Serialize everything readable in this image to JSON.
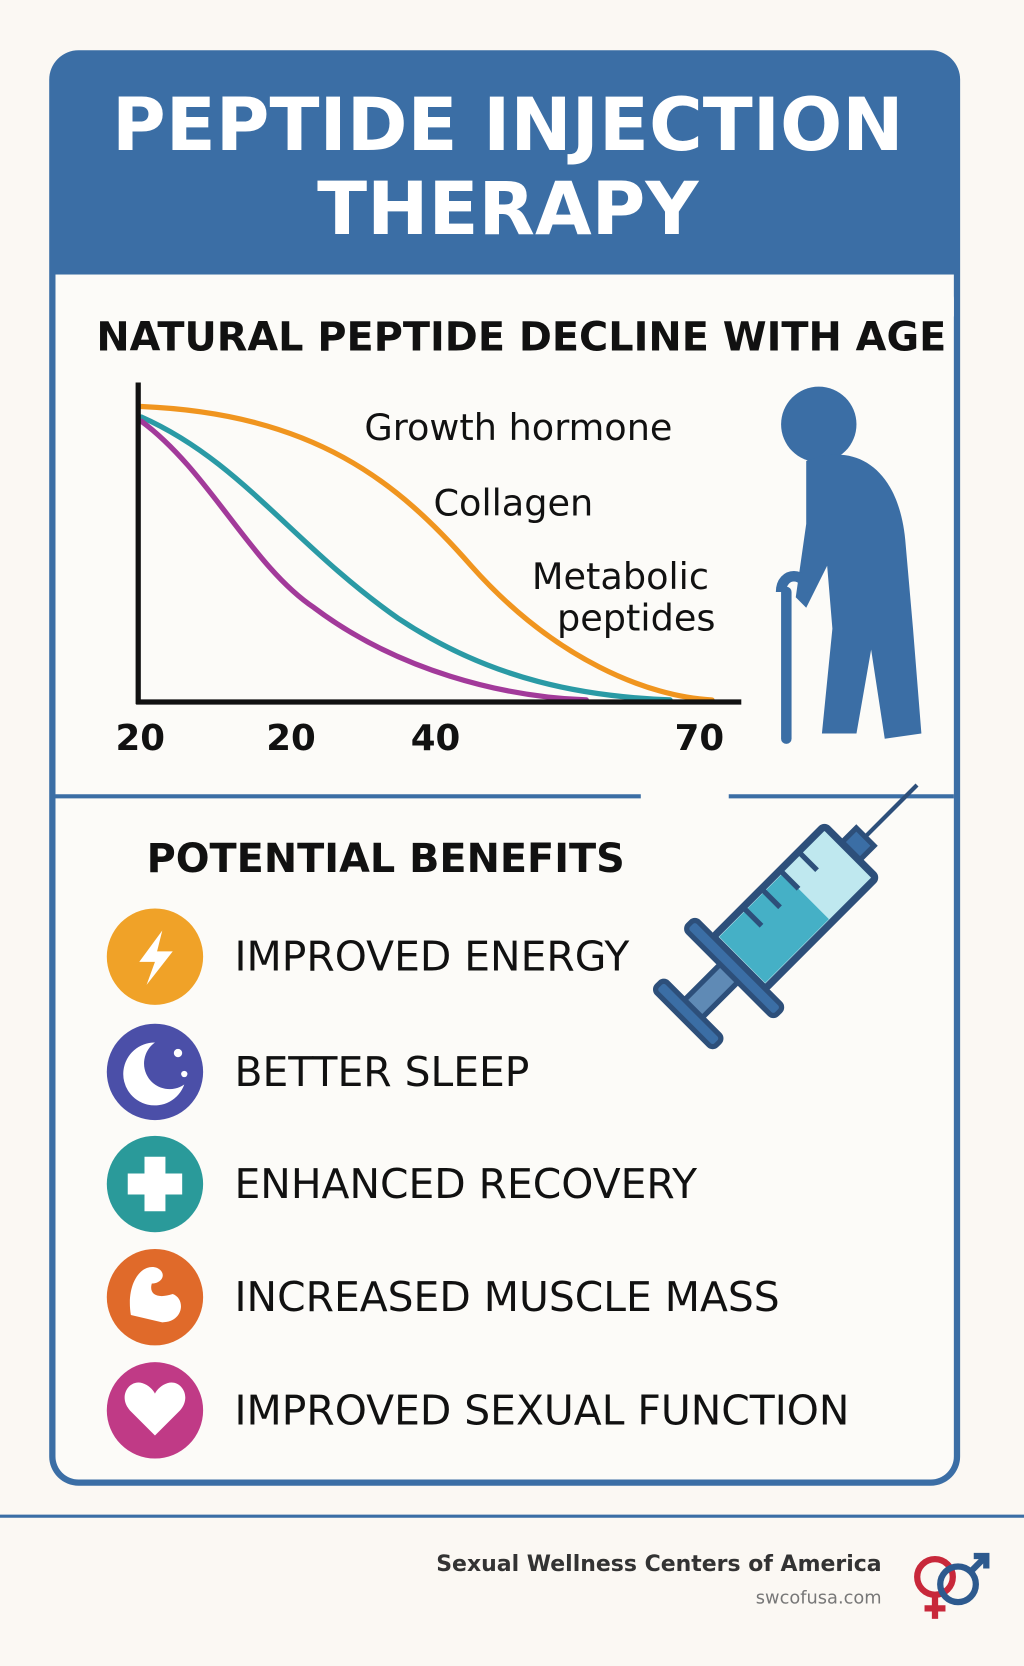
{
  "header": {
    "title_lines": [
      "PEPTIDE INJECTION",
      "THERAPY"
    ]
  },
  "decline_chart": {
    "title": "NATURAL PEPTIDE DECLINE WITH AGE",
    "curve_labels": [
      "Growth hormone",
      "Collagen",
      "Metabolic",
      "peptides"
    ],
    "x_tick_labels": [
      "20",
      "20",
      "40",
      "70"
    ]
  },
  "benefits": {
    "title": "POTENTIAL BENEFITS",
    "items": [
      "IMPROVED ENERGY",
      "BETTER SLEEP",
      "ENHANCED RECOVERY",
      "INCREASED MUSCLE MASS",
      "IMPROVED SEXUAL FUNCTION"
    ]
  },
  "footer": {
    "organization": "Sexual Wellness Centers of America",
    "website": "swcofusa.com"
  }
}
